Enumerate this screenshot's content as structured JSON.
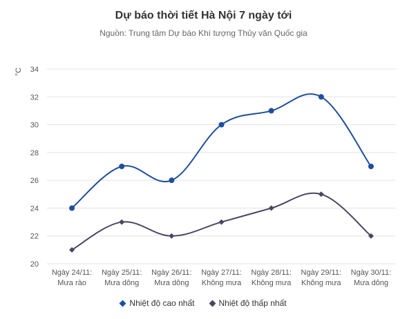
{
  "chart_data": {
    "type": "line",
    "title": "Dự báo thời tiết Hà Nội 7 ngày tới",
    "subtitle": "Nguồn: Trung tâm Dự báo Khí tượng Thủy văn Quốc gia",
    "ylabel": "°C",
    "ylim": [
      20,
      34
    ],
    "yticks": [
      20,
      22,
      24,
      26,
      28,
      30,
      32,
      34
    ],
    "grid": true,
    "legend": "bottom",
    "categories": [
      [
        "Ngày 24/11:",
        "Mưa rào"
      ],
      [
        "Ngày 25/11:",
        "Mưa dông"
      ],
      [
        "Ngày 26/11:",
        "Mưa dông"
      ],
      [
        "Ngày 27/11:",
        "Không mưa"
      ],
      [
        "Ngày 28/11:",
        "Không mưa"
      ],
      [
        "Ngày 29/11:",
        "Không mưa"
      ],
      [
        "Ngày 30/11:",
        "Mưa dông"
      ]
    ],
    "series": [
      {
        "name": "Nhiệt độ cao nhất",
        "values": [
          24,
          27,
          26,
          30,
          31,
          32,
          27
        ],
        "color": "#1f4e9c",
        "marker": "circle"
      },
      {
        "name": "Nhiệt độ thấp nhất",
        "values": [
          21,
          23,
          22,
          23,
          24,
          25,
          22
        ],
        "color": "#4a4560",
        "marker": "diamond"
      }
    ]
  }
}
